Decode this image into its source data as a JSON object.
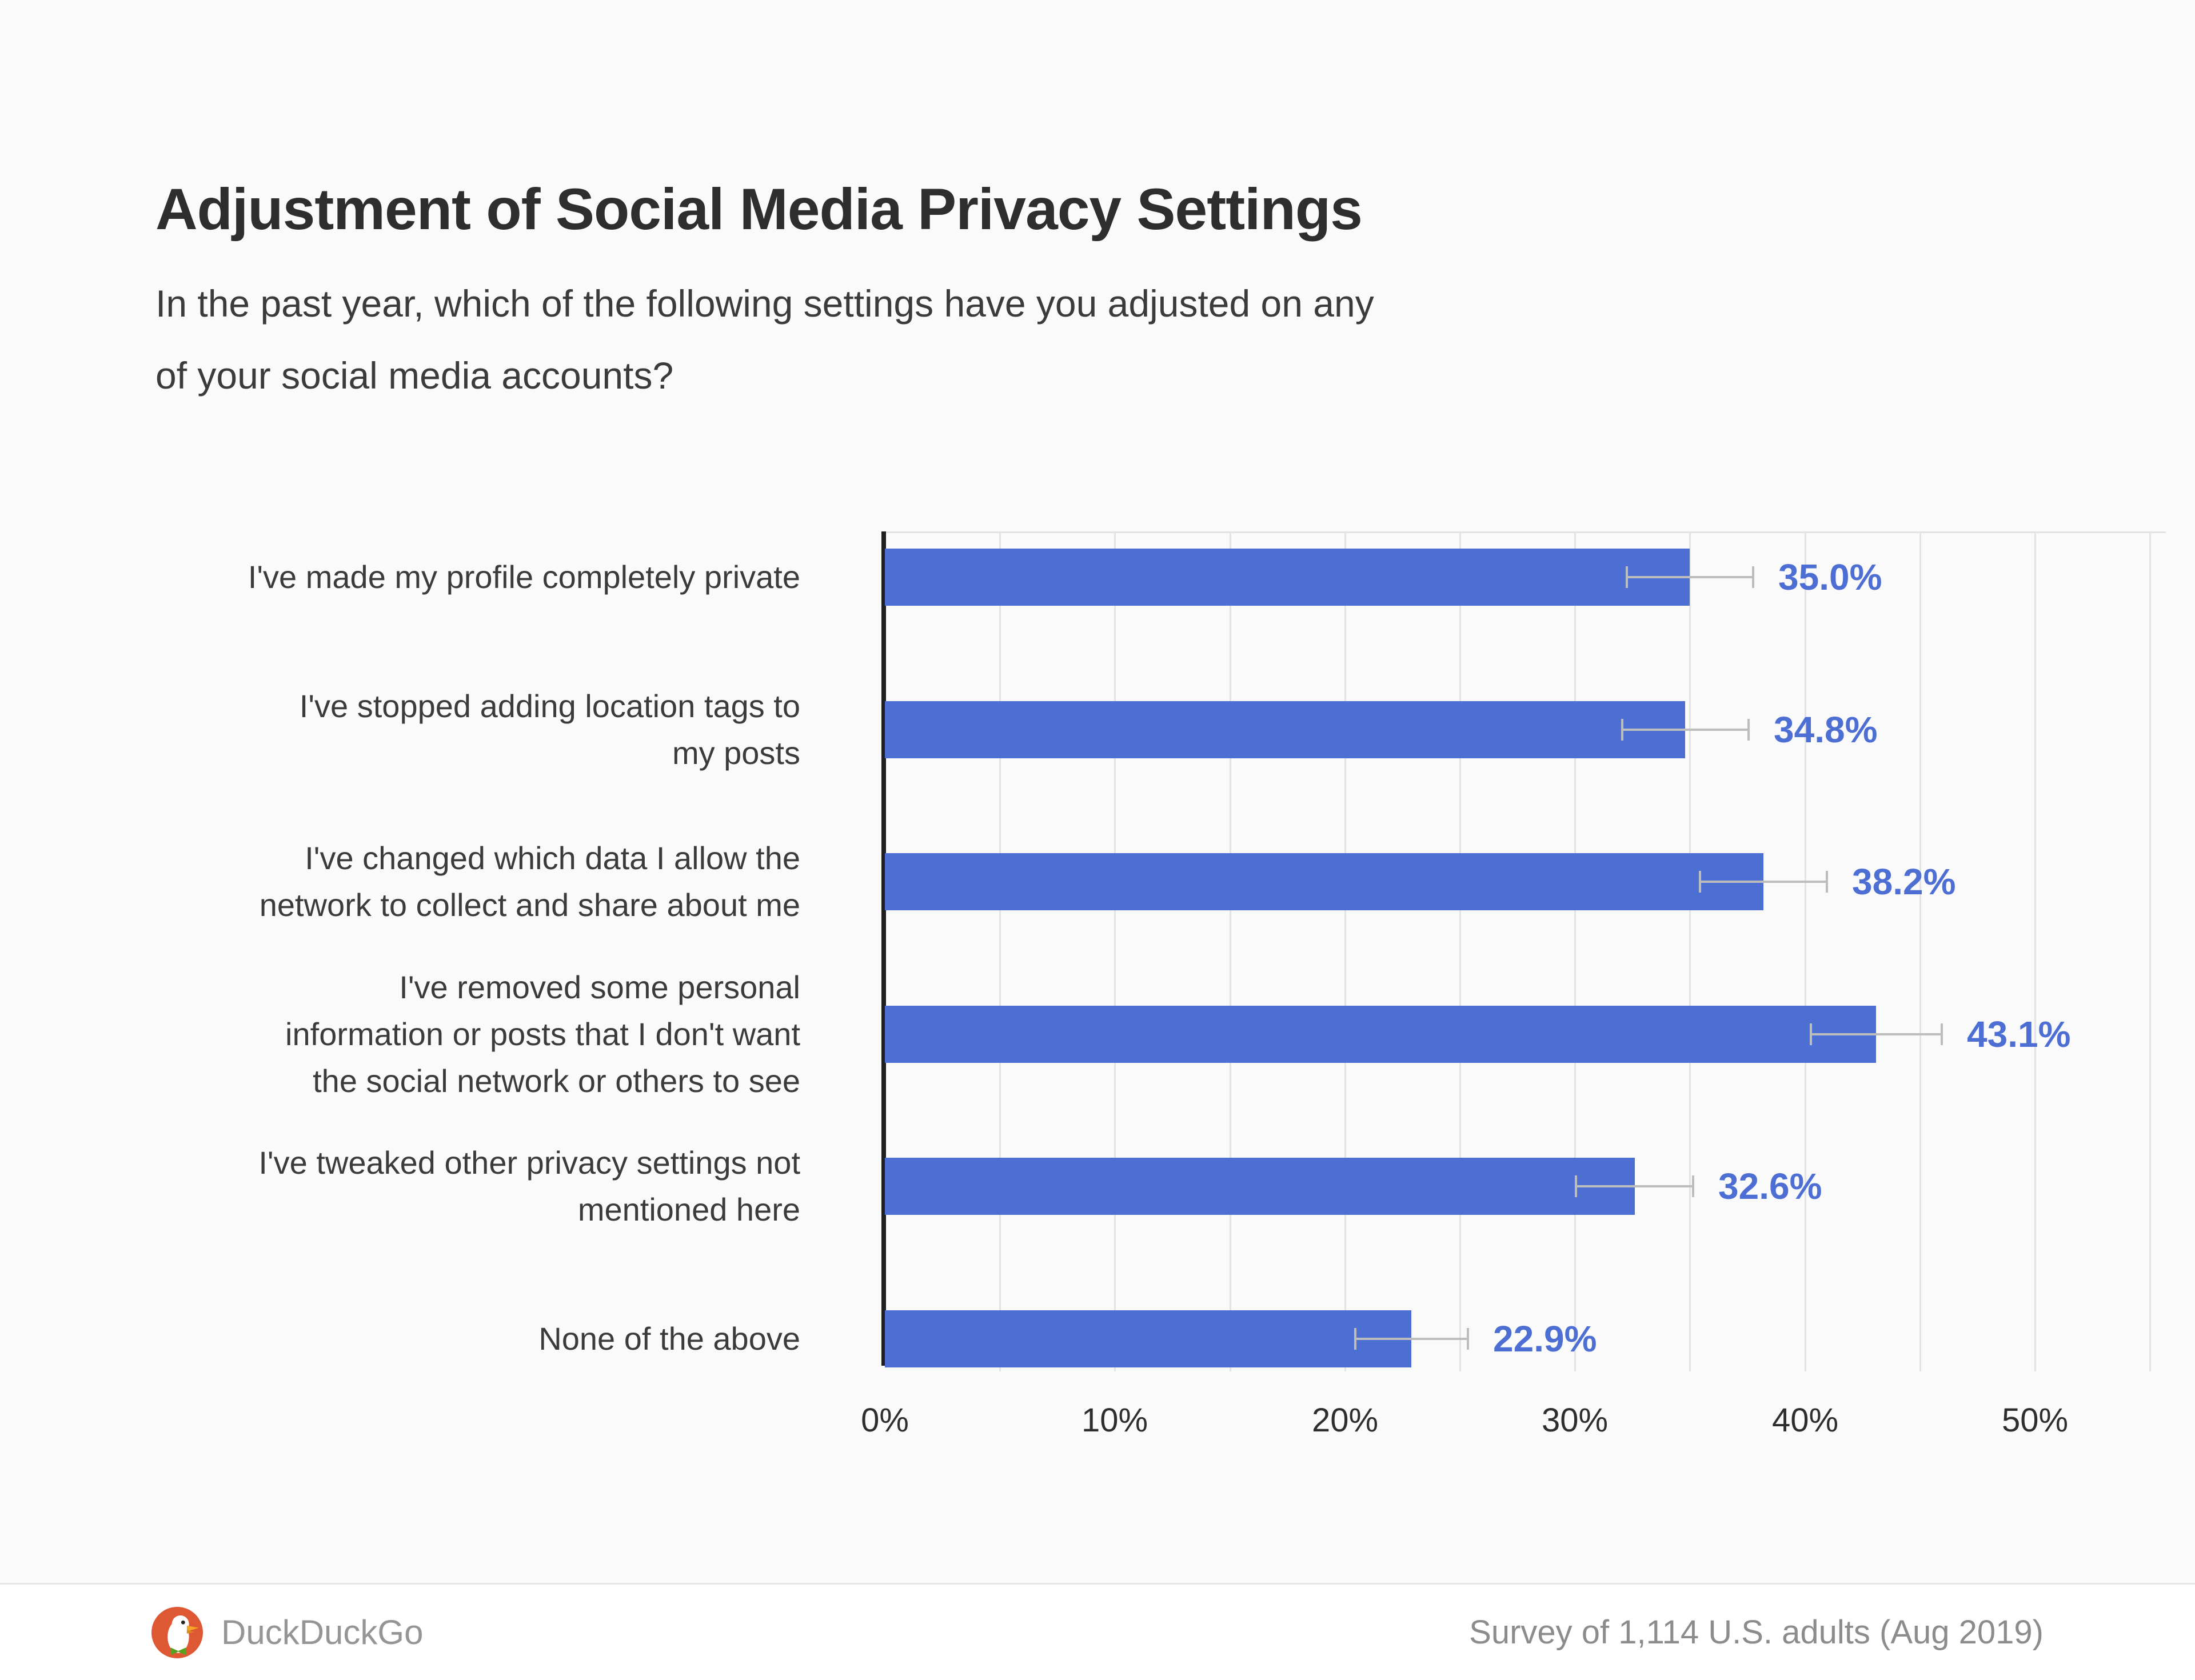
{
  "title": "Adjustment of Social Media Privacy Settings",
  "subtitle": "In the past year, which of the following settings have you adjusted on any of your social media accounts?",
  "subtitle_lines": [
    "In the past year, which of the following settings have you adjusted on any",
    "of your social media accounts?"
  ],
  "chart_data": {
    "type": "bar",
    "orientation": "horizontal",
    "title": "Adjustment of Social Media Privacy Settings",
    "categories": [
      "I've made my profile completely private",
      "I've stopped adding location tags to my posts",
      "I've changed which data I allow the network to collect and share about me",
      "I've removed some personal information or posts that I don't want the social network or others to see",
      "I've tweaked other privacy settings not mentioned here",
      "None of the above"
    ],
    "category_lines": [
      [
        "I've made my profile completely private"
      ],
      [
        "I've stopped adding location tags to",
        "my posts"
      ],
      [
        "I've changed which data I allow the",
        "network to collect and share about me"
      ],
      [
        "I've removed some personal",
        "information or posts that I don't want",
        "the social network or others to see"
      ],
      [
        "I've tweaked other privacy settings not",
        "mentioned here"
      ],
      [
        "None of the above"
      ]
    ],
    "values": [
      35.0,
      34.8,
      38.2,
      43.1,
      32.6,
      22.9
    ],
    "value_labels": [
      "35.0%",
      "34.8%",
      "38.2%",
      "43.1%",
      "32.6%",
      "22.9%"
    ],
    "error_margins": [
      2.8,
      2.8,
      2.8,
      2.9,
      2.6,
      2.5
    ],
    "x_ticks": [
      "0%",
      "10%",
      "20%",
      "30%",
      "40%",
      "50%"
    ],
    "x_tick_values": [
      0,
      10,
      20,
      30,
      40,
      50
    ],
    "xlim": [
      0,
      55
    ],
    "grid_step": 5,
    "grid": true,
    "legend": false,
    "xlabel": "",
    "ylabel": ""
  },
  "colors": {
    "bar": "#4d6fd3",
    "value_label": "#4d6fd3",
    "axis": "#1f1f1f",
    "gridline": "#e3e3e3",
    "error_bar": "#bdbdbd",
    "background": "#fafafa",
    "footer_background": "#ffffff",
    "title_text": "#2e2e2e",
    "body_text": "#3b3b3b",
    "footer_text": "#8c8c8c",
    "logo_red": "#de5833",
    "logo_beak": "#f5a623",
    "logo_bow": "#57a121"
  },
  "footer": {
    "brand": "DuckDuckGo",
    "source": "Survey of 1,114 U.S. adults (Aug 2019)"
  }
}
